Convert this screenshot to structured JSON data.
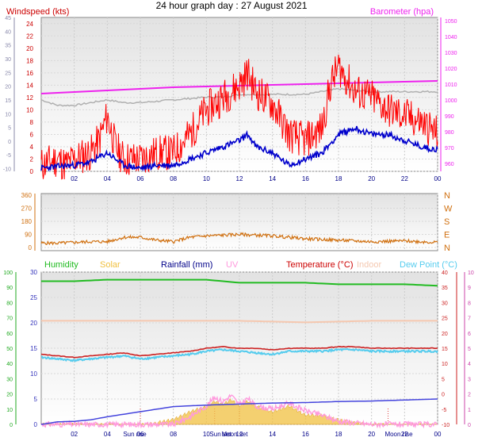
{
  "title": "24 hour graph day : 27 August 2021",
  "colors": {
    "wind_gust": "#ff0000",
    "wind_avg": "#0000cc",
    "barometer": "#ee22ee",
    "baro_gray": "#b0b0b0",
    "direction": "#d07010",
    "humidity": "#22bb22",
    "solar": "#f0c040",
    "rainfall": "#4444dd",
    "uv": "#ff99dd",
    "temperature": "#cc2222",
    "indoor": "#f5c8b0",
    "dewpoint": "#55ccee",
    "hum_axis": "#22aa22",
    "ws_axis": "#8888aa",
    "temp_axis": "#cc2222",
    "uv_axis": "#cc44aa",
    "rain_axis": "#3333bb"
  },
  "chart_data": [
    {
      "type": "line",
      "panel": "wind-baro",
      "x_ticks": [
        "02",
        "04",
        "06",
        "08",
        "10",
        "12",
        "14",
        "16",
        "18",
        "20",
        "22",
        "00"
      ],
      "left_axis": {
        "label": "Windspeed (kts)",
        "ticks": [
          "0",
          "2",
          "4",
          "6",
          "8",
          "10",
          "12",
          "14",
          "16",
          "18",
          "20",
          "22",
          "24"
        ],
        "ylim": [
          0,
          25
        ]
      },
      "outer_left_axis": {
        "ticks": [
          "-10",
          "-5",
          "0",
          "5",
          "10",
          "15",
          "20",
          "25",
          "30",
          "35",
          "40",
          "45"
        ],
        "ylim": [
          -11,
          45
        ]
      },
      "right_axis": {
        "label": "Barometer (hpa)",
        "ticks": [
          "960",
          "970",
          "980",
          "990",
          "1000",
          "1010",
          "1020",
          "1030",
          "1040",
          "1050"
        ],
        "ylim": [
          955,
          1052
        ]
      },
      "series": [
        {
          "name": "Barometer",
          "axis": "right",
          "x": [
            0,
            2,
            4,
            6,
            8,
            10,
            12,
            14,
            16,
            18,
            20,
            22,
            24
          ],
          "y": [
            1004,
            1005,
            1006,
            1007,
            1008,
            1008.5,
            1009,
            1009.5,
            1010,
            1010.5,
            1011,
            1011.5,
            1012
          ]
        },
        {
          "axis": "outer_left",
          "x": [
            0,
            1,
            2,
            4,
            5,
            6,
            8,
            10,
            11,
            12,
            14,
            16,
            17,
            18,
            20,
            22,
            24
          ],
          "y": [
            15,
            13,
            13,
            15,
            14,
            14,
            15,
            16,
            16,
            17,
            17,
            17,
            18,
            19,
            18,
            18,
            18
          ]
        },
        {
          "axis": "left",
          "x": [
            0,
            1,
            1.5,
            2,
            3,
            3.5,
            4,
            4.5,
            5,
            6,
            7,
            8,
            9,
            10,
            11,
            12,
            12.5,
            13,
            14,
            15,
            16,
            17,
            17.5,
            18,
            18.5,
            19,
            20,
            21,
            22,
            23,
            24
          ],
          "y": [
            1,
            2,
            1,
            2,
            3,
            5,
            9,
            4,
            2,
            2,
            3,
            3,
            6,
            10,
            12,
            14,
            16,
            13,
            11,
            6,
            5,
            7,
            14,
            17,
            15,
            13,
            12,
            10,
            9,
            8,
            6
          ]
        },
        {
          "axis": "left",
          "x": [
            0,
            1,
            2,
            3,
            4,
            5,
            6,
            7,
            8,
            9,
            10,
            11,
            12,
            12.5,
            13,
            14,
            15,
            16,
            17,
            18,
            19,
            20,
            21,
            22,
            23,
            24
          ],
          "y": [
            0.5,
            0.8,
            1,
            1.5,
            3,
            1,
            0.5,
            1,
            1,
            2,
            3,
            4,
            5,
            6,
            4,
            3,
            1,
            2,
            3,
            6,
            7,
            6,
            6,
            5,
            4,
            3.5
          ]
        }
      ]
    },
    {
      "type": "line",
      "panel": "direction",
      "x_ticks": [],
      "left_axis": {
        "ticks": [
          "0",
          "90",
          "180",
          "270",
          "360"
        ],
        "ylim": [
          0,
          360
        ]
      },
      "right_axis": {
        "ticks": [
          "N",
          "E",
          "S",
          "W",
          "N"
        ]
      },
      "series": [
        {
          "axis": "left",
          "x": [
            0,
            1,
            2,
            3,
            4,
            5,
            6,
            7,
            8,
            9,
            10,
            12,
            14,
            16,
            18,
            20,
            22,
            24
          ],
          "y": [
            30,
            30,
            35,
            40,
            40,
            70,
            70,
            50,
            40,
            70,
            80,
            90,
            80,
            60,
            50,
            40,
            45,
            35
          ]
        }
      ]
    },
    {
      "type": "line",
      "panel": "temp-hum",
      "x_ticks": [
        "02",
        "04",
        "06",
        "08",
        "10",
        "12",
        "14",
        "16",
        "18",
        "20",
        "22",
        "00"
      ],
      "markers": [
        "Sun rise",
        "Sun set",
        "Moon set",
        "Moon rise"
      ],
      "legend": [
        "Humidity",
        "Solar",
        "Rainfall (mm)",
        "UV",
        "Temperature (°C)",
        "Indoor",
        "Dew Point (°C)"
      ],
      "left_axis": {
        "ticks": [
          "0",
          "10",
          "20",
          "30",
          "40",
          "50",
          "60",
          "70",
          "80",
          "90",
          "100"
        ],
        "ylim": [
          0,
          100
        ]
      },
      "inner_left_axis": {
        "ticks": [
          "0",
          "5",
          "10",
          "15",
          "20",
          "25",
          "30"
        ],
        "ylim": [
          0,
          30
        ]
      },
      "right_axis": {
        "ticks": [
          "-10",
          "-5",
          "0",
          "5",
          "10",
          "15",
          "20",
          "25",
          "30",
          "35",
          "40"
        ],
        "ylim": [
          -10,
          40
        ]
      },
      "outer_right_axis": {
        "ticks": [
          "0",
          "1",
          "2",
          "3",
          "4",
          "5",
          "6",
          "7",
          "8",
          "9",
          "10"
        ],
        "ylim": [
          0,
          10
        ]
      },
      "series": [
        {
          "name": "Humidity",
          "axis": "left",
          "x": [
            0,
            2,
            4,
            6,
            8,
            10,
            12,
            14,
            16,
            18,
            20,
            22,
            24
          ],
          "y": [
            94,
            94,
            95,
            95,
            95,
            95,
            93,
            93,
            93,
            92,
            92,
            92,
            91
          ]
        },
        {
          "name": "Indoor",
          "axis": "right",
          "x": [
            0,
            4,
            8,
            12,
            16,
            20,
            24
          ],
          "y": [
            24,
            24,
            24,
            24,
            23.5,
            24,
            24
          ]
        },
        {
          "name": "Temperature (°C)",
          "axis": "right",
          "x": [
            0,
            1,
            2,
            3,
            4,
            5,
            6,
            7,
            8,
            9,
            10,
            11,
            12,
            13,
            14,
            15,
            16,
            17,
            18,
            19,
            20,
            21,
            22,
            23,
            24
          ],
          "y": [
            13,
            12.5,
            12,
            12.5,
            13,
            13.5,
            12.5,
            13,
            13.5,
            14,
            15,
            15.5,
            15,
            15,
            14.5,
            15,
            15,
            15,
            15.5,
            15.5,
            15,
            15,
            15,
            15,
            15
          ]
        },
        {
          "name": "Dew Point (°C)",
          "axis": "right",
          "x": [
            0,
            1,
            2,
            3,
            4,
            5,
            6,
            7,
            8,
            9,
            10,
            11,
            12,
            13,
            14,
            15,
            16,
            17,
            18,
            19,
            20,
            21,
            22,
            23,
            24
          ],
          "y": [
            12,
            11.5,
            11,
            11.5,
            12,
            12.5,
            11.5,
            12,
            12.5,
            13,
            14,
            14.5,
            14,
            13.5,
            13,
            14,
            14,
            14,
            14.5,
            14.5,
            14,
            14,
            14,
            14,
            14
          ]
        },
        {
          "name": "Rainfall (mm)",
          "axis": "inner_left",
          "x": [
            0,
            1,
            2,
            3,
            4,
            5,
            6,
            8,
            10,
            12,
            14,
            16,
            18,
            20,
            22,
            24
          ],
          "y": [
            0,
            0.5,
            0.6,
            0.9,
            1.5,
            2,
            2.5,
            3.5,
            3.8,
            4,
            4.2,
            4.3,
            4.5,
            4.6,
            4.8,
            5
          ]
        },
        {
          "name": "Solar",
          "axis": "outer_right",
          "x": [
            0,
            6,
            6.5,
            7,
            8,
            9,
            10,
            10.5,
            11,
            11.5,
            12,
            12.5,
            13,
            14,
            15,
            16,
            17,
            18,
            19,
            20,
            24
          ],
          "y": [
            0,
            0,
            0.05,
            0.1,
            0.3,
            0.8,
            1.2,
            1.5,
            1.3,
            1.6,
            1.2,
            1.5,
            1.2,
            0.8,
            1.2,
            0.6,
            0.6,
            0.3,
            0.1,
            0,
            0
          ]
        },
        {
          "name": "UV",
          "axis": "outer_right",
          "x": [
            0,
            8,
            9,
            10,
            10.5,
            11,
            11.5,
            12,
            12.5,
            13,
            14,
            15,
            16,
            17,
            18,
            20,
            24
          ],
          "y": [
            0,
            0,
            0.5,
            1.2,
            1.8,
            1.5,
            1.9,
            1.3,
            1.7,
            1.2,
            1.0,
            1.4,
            0.9,
            0.6,
            0.2,
            0,
            0
          ]
        }
      ]
    }
  ]
}
